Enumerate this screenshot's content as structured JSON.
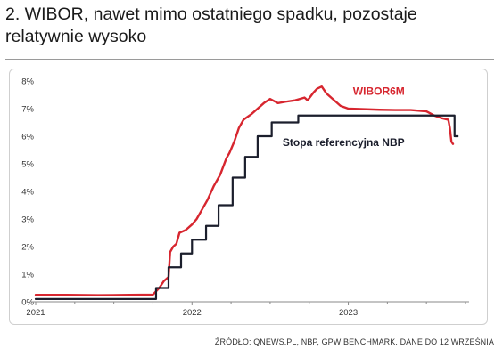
{
  "title": "2. WIBOR, nawet mimo ostatniego spadku, pozostaje relatywnie wysoko",
  "source": "ŹRÓDŁO: QNEWS.PL, NBP, GPW BENCHMARK. DANE DO 12 WRZEŚNIA",
  "colors": {
    "wibor": "#d7262f",
    "ref": "#1b1e2c",
    "grid": "#e6e6e6",
    "axis": "#8a8a8a"
  },
  "chart_data": {
    "type": "line",
    "ylim": [
      0,
      8
    ],
    "yticks": [
      0,
      1,
      2,
      3,
      4,
      5,
      6,
      7,
      8
    ],
    "ytick_labels": [
      "0%",
      "1%",
      "2%",
      "3%",
      "4%",
      "5%",
      "6%",
      "7%",
      "8%"
    ],
    "xlim": [
      2021.0,
      2023.75
    ],
    "xticks": [
      2021,
      2022,
      2023
    ],
    "xtick_labels": [
      "2021",
      "2022",
      "2023"
    ],
    "grid": false,
    "series": [
      {
        "name": "WIBOR6M",
        "style": "line",
        "color": "#d7262f",
        "points": [
          [
            2021.0,
            0.25
          ],
          [
            2021.2,
            0.25
          ],
          [
            2021.4,
            0.24
          ],
          [
            2021.6,
            0.25
          ],
          [
            2021.75,
            0.26
          ],
          [
            2021.79,
            0.5
          ],
          [
            2021.82,
            0.75
          ],
          [
            2021.85,
            0.9
          ],
          [
            2021.86,
            1.8
          ],
          [
            2021.88,
            2.0
          ],
          [
            2021.9,
            2.1
          ],
          [
            2021.92,
            2.5
          ],
          [
            2021.96,
            2.6
          ],
          [
            2022.0,
            2.8
          ],
          [
            2022.03,
            3.0
          ],
          [
            2022.06,
            3.3
          ],
          [
            2022.1,
            3.7
          ],
          [
            2022.14,
            4.2
          ],
          [
            2022.18,
            4.6
          ],
          [
            2022.22,
            5.2
          ],
          [
            2022.24,
            5.4
          ],
          [
            2022.27,
            5.8
          ],
          [
            2022.3,
            6.3
          ],
          [
            2022.33,
            6.6
          ],
          [
            2022.38,
            6.8
          ],
          [
            2022.42,
            7.0
          ],
          [
            2022.46,
            7.2
          ],
          [
            2022.5,
            7.35
          ],
          [
            2022.55,
            7.2
          ],
          [
            2022.6,
            7.25
          ],
          [
            2022.66,
            7.3
          ],
          [
            2022.72,
            7.4
          ],
          [
            2022.74,
            7.3
          ],
          [
            2022.78,
            7.6
          ],
          [
            2022.8,
            7.72
          ],
          [
            2022.83,
            7.8
          ],
          [
            2022.86,
            7.55
          ],
          [
            2022.9,
            7.35
          ],
          [
            2022.95,
            7.1
          ],
          [
            2023.0,
            7.0
          ],
          [
            2023.1,
            6.98
          ],
          [
            2023.2,
            6.96
          ],
          [
            2023.3,
            6.95
          ],
          [
            2023.4,
            6.95
          ],
          [
            2023.5,
            6.9
          ],
          [
            2023.55,
            6.75
          ],
          [
            2023.6,
            6.65
          ],
          [
            2023.64,
            6.6
          ],
          [
            2023.65,
            6.3
          ],
          [
            2023.66,
            5.8
          ],
          [
            2023.67,
            5.72
          ]
        ]
      },
      {
        "name": "Stopa referencyjna NBP",
        "style": "step",
        "color": "#1b1e2c",
        "points": [
          [
            2021.0,
            0.1
          ],
          [
            2021.77,
            0.5
          ],
          [
            2021.85,
            1.25
          ],
          [
            2021.93,
            1.75
          ],
          [
            2022.0,
            2.25
          ],
          [
            2022.09,
            2.75
          ],
          [
            2022.17,
            3.5
          ],
          [
            2022.26,
            4.5
          ],
          [
            2022.34,
            5.25
          ],
          [
            2022.42,
            6.0
          ],
          [
            2022.51,
            6.5
          ],
          [
            2022.68,
            6.75
          ],
          [
            2023.68,
            6.0
          ]
        ],
        "end_x": 2023.7
      }
    ],
    "annotations": [
      {
        "text": "WIBOR6M",
        "series": "WIBOR6M"
      },
      {
        "text": "Stopa referencyjna NBP",
        "series": "Stopa referencyjna NBP"
      }
    ]
  }
}
